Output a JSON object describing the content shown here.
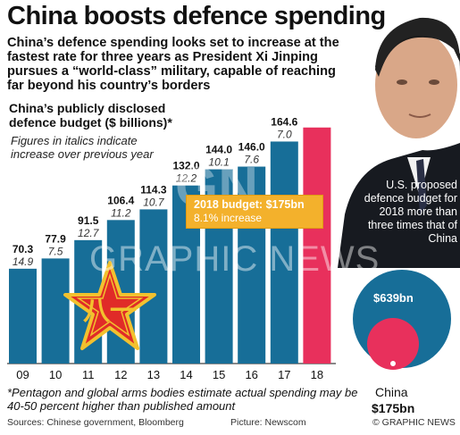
{
  "title": "China boosts defence spending",
  "subtitle": "China’s defence spending looks set to increase at the fastest rate for three years as President Xi Jinping pursues a “world-class” military, capable of reaching far beyond his country’s borders",
  "chart_title": "China’s publicly disclosed defence budget ($ billions)*",
  "chart_note": "Figures in italics indicate increase over previous year",
  "callout": {
    "line1": "2018 budget: $175bn",
    "line2": "8.1% increase"
  },
  "comparison_text": "U.S. proposed defence budget for 2018 more than three times that of China",
  "us_value_label": "$639bn",
  "china_label": "China",
  "china_value_label": "$175bn",
  "watermark": "GRAPHIC NEWS",
  "footnote": "*Pentagon and global arms bodies estimate actual spending may be 40-50 percent higher than published amount",
  "source": "Sources: Chinese government, Bloomberg",
  "picture_credit": "Picture: Newscom",
  "copyright": "© GRAPHIC NEWS",
  "colors": {
    "bar": "#176e98",
    "highlight": "#e8305c",
    "callout": "#f3b12c",
    "us_circle": "#176e98",
    "china_circle": "#e8305c",
    "star": "#e02b28",
    "star_stroke": "#f2c12e"
  },
  "chart_data": {
    "type": "bar",
    "title": "China’s publicly disclosed defence budget ($ billions)*",
    "categories": [
      "09",
      "10",
      "11",
      "12",
      "13",
      "14",
      "15",
      "16",
      "17",
      "18"
    ],
    "values": [
      70.3,
      77.9,
      91.5,
      106.4,
      114.3,
      132.0,
      144.0,
      146.0,
      164.6,
      175
    ],
    "value_labels": [
      "70.3",
      "77.9",
      "91.5",
      "106.4",
      "114.3",
      "132.0",
      "144.0",
      "146.0",
      "164.6",
      ""
    ],
    "increase_labels": [
      "14.9",
      "7.5",
      "12.7",
      "11.2",
      "10.7",
      "12.2",
      "10.1",
      "7.6",
      "7.0",
      ""
    ],
    "highlight_index": 9,
    "ylim": [
      0,
      200
    ],
    "grid": false,
    "legend": "none",
    "comparison": {
      "us": 639,
      "china": 175
    }
  }
}
